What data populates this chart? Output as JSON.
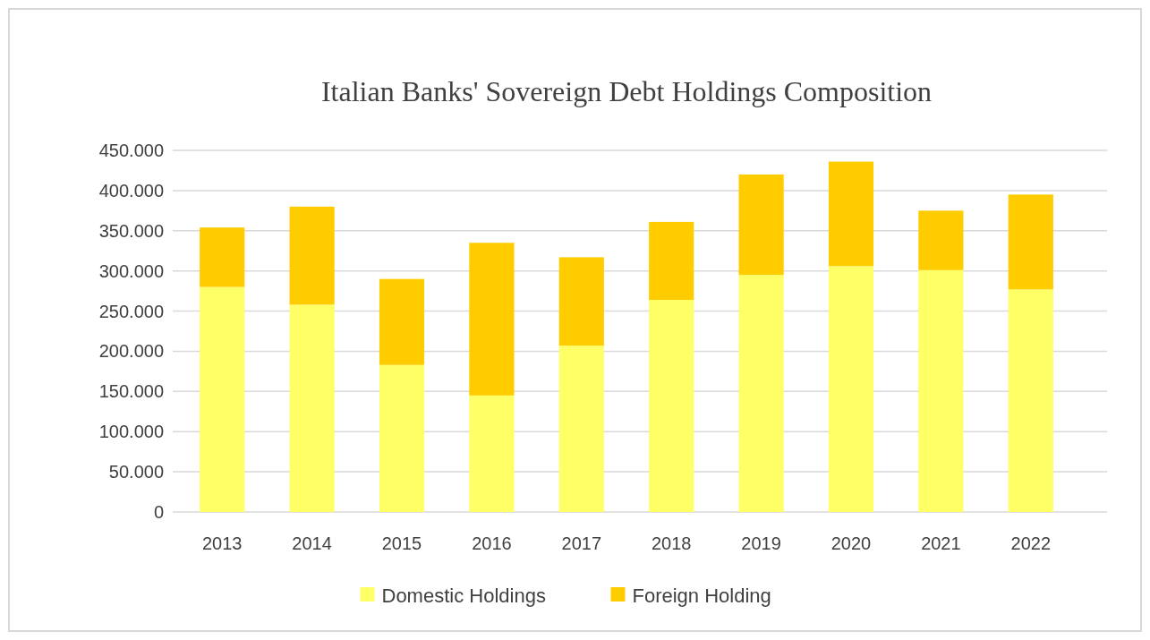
{
  "chart_data": {
    "type": "bar",
    "title": "Italian Banks' Sovereign Debt Holdings Composition",
    "stacked": true,
    "categories": [
      "2013",
      "2014",
      "2015",
      "2016",
      "2017",
      "2018",
      "2019",
      "2020",
      "2021",
      "2022"
    ],
    "series": [
      {
        "name": "Domestic Holdings",
        "color": "#ffff66",
        "values": [
          280000,
          258000,
          183000,
          145000,
          207000,
          264000,
          295000,
          306000,
          301000,
          277000
        ]
      },
      {
        "name": "Foreign Holding",
        "color": "#ffcc00",
        "values": [
          74000,
          122000,
          107000,
          190000,
          110000,
          97000,
          125000,
          130000,
          74000,
          118000
        ]
      }
    ],
    "ylim": [
      0,
      450000
    ],
    "yticks": [
      0,
      {
        "value": 50000,
        "label": "50.000"
      },
      {
        "value": 100000,
        "label": "100.000"
      },
      {
        "value": 150000,
        "label": "150.000"
      },
      {
        "value": 200000,
        "label": "200.000"
      },
      {
        "value": 250000,
        "label": "250.000"
      },
      {
        "value": 300000,
        "label": "300.000"
      },
      {
        "value": 350000,
        "label": "350.000"
      },
      {
        "value": 400000,
        "label": "400.000"
      },
      {
        "value": 450000,
        "label": "450.000"
      }
    ],
    "grid": true,
    "legend": "bottom"
  }
}
